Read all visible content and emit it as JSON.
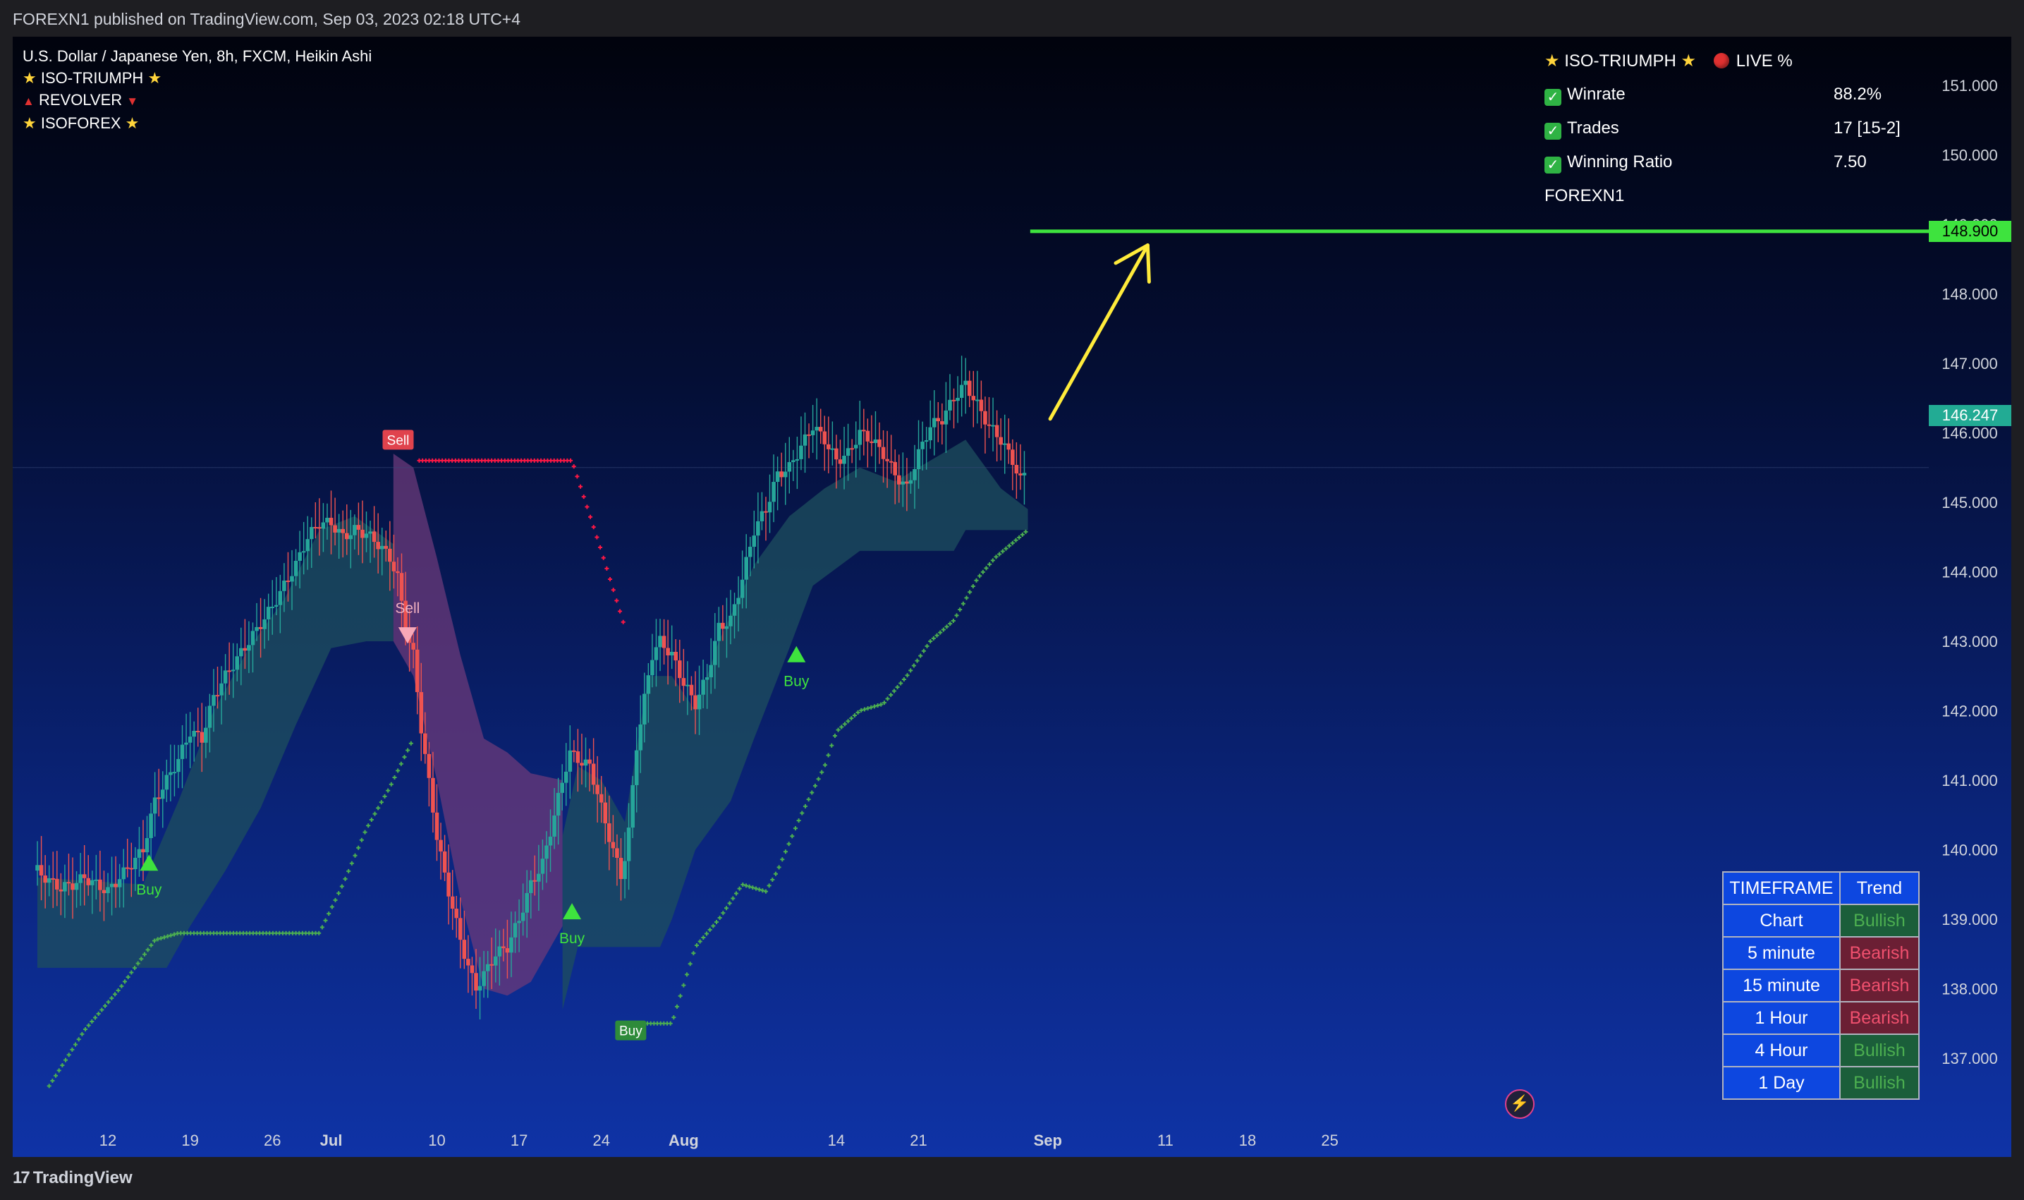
{
  "header": {
    "published": "FOREXN1 published on TradingView.com, Sep 03, 2023 02:18 UTC+4"
  },
  "legend": {
    "symbol": "U.S. Dollar / Japanese Yen, 8h, FXCM, Heikin Ashi",
    "indicators": [
      "ISO-TRIUMPH",
      "REVOLVER",
      "ISOFOREX"
    ]
  },
  "stats": {
    "title": "ISO-TRIUMPH",
    "live": "LIVE %",
    "rows": [
      {
        "label": "Winrate",
        "value": "88.2%"
      },
      {
        "label": "Trades",
        "value": "17 [15-2]"
      },
      {
        "label": "Winning Ratio",
        "value": "7.50"
      }
    ],
    "author": "FOREXN1"
  },
  "trend_table": {
    "headers": [
      "TIMEFRAME",
      "Trend"
    ],
    "rows": [
      {
        "timeframe": "Chart",
        "trend": "Bullish"
      },
      {
        "timeframe": "5 minute",
        "trend": "Bearish"
      },
      {
        "timeframe": "15 minute",
        "trend": "Bearish"
      },
      {
        "timeframe": "1 Hour",
        "trend": "Bearish"
      },
      {
        "timeframe": "4 Hour",
        "trend": "Bullish"
      },
      {
        "timeframe": "1 Day",
        "trend": "Bullish"
      }
    ]
  },
  "colors": {
    "bull": "#26a69a",
    "bear": "#ef5350",
    "target": "#3ee33e",
    "arrow": "#ffeb3b",
    "stop_dots_bull": "#4caf50",
    "stop_dots_bear": "#ff1744",
    "last_price_badge": "#22ab94",
    "cloud_bull": "#1d4f5e",
    "cloud_bear": "#6b3a7a"
  },
  "footer": {
    "brand": "TradingView"
  },
  "icons": {
    "bolt": "lightning-bolt-icon",
    "check": "check-box-icon",
    "live": "red-dot-icon"
  },
  "chart_data": {
    "type": "candlestick",
    "title": "U.S. Dollar / Japanese Yen, 8h, FXCM, Heikin Ashi",
    "y_range": [
      136.4,
      152.0
    ],
    "y_ticks": [
      "151.000",
      "150.000",
      "149.000",
      "148.000",
      "147.000",
      "146.000",
      "145.000",
      "144.000",
      "143.000",
      "142.000",
      "141.000",
      "140.000",
      "139.000",
      "138.000",
      "137.000"
    ],
    "y_tick_values": [
      151,
      150,
      149,
      148,
      147,
      146,
      145,
      144,
      143,
      142,
      141,
      140,
      139,
      138,
      137
    ],
    "x_labels": [
      {
        "label": "12",
        "day": 0
      },
      {
        "label": "19",
        "day": 7
      },
      {
        "label": "26",
        "day": 14
      },
      {
        "label": "Jul",
        "day": 19,
        "bold": true
      },
      {
        "label": "10",
        "day": 28
      },
      {
        "label": "17",
        "day": 35
      },
      {
        "label": "24",
        "day": 42
      },
      {
        "label": "Aug",
        "day": 49,
        "bold": true
      },
      {
        "label": "14",
        "day": 62
      },
      {
        "label": "21",
        "day": 69
      },
      {
        "label": "Sep",
        "day": 80,
        "bold": true
      },
      {
        "label": "11",
        "day": 90
      },
      {
        "label": "18",
        "day": 97
      },
      {
        "label": "25",
        "day": 104
      }
    ],
    "last_price": "146.247",
    "last_price_value": 146.247,
    "target_price": "148.900",
    "target_price_value": 148.9,
    "price_path": [
      [
        -6,
        139.7
      ],
      [
        -5,
        139.55
      ],
      [
        -4,
        139.45
      ],
      [
        -3,
        139.5
      ],
      [
        -2,
        139.6
      ],
      [
        0,
        139.4
      ],
      [
        1,
        139.6
      ],
      [
        3,
        140.0
      ],
      [
        4,
        140.7
      ],
      [
        6,
        141.3
      ],
      [
        7,
        141.7
      ],
      [
        8,
        141.6
      ],
      [
        9,
        142.2
      ],
      [
        10,
        142.5
      ],
      [
        12,
        143.0
      ],
      [
        14,
        143.5
      ],
      [
        16,
        144.1
      ],
      [
        17,
        144.5
      ],
      [
        18,
        144.7
      ],
      [
        19,
        144.7
      ],
      [
        20,
        144.5
      ],
      [
        21,
        144.6
      ],
      [
        22,
        144.55
      ],
      [
        23,
        144.4
      ],
      [
        24,
        144.2
      ],
      [
        24.7,
        143.9
      ],
      [
        25.3,
        143.2
      ],
      [
        26,
        142.8
      ],
      [
        26.7,
        141.7
      ],
      [
        27.3,
        141.0
      ],
      [
        28,
        140.2
      ],
      [
        28.7,
        139.6
      ],
      [
        29.3,
        139.2
      ],
      [
        30,
        138.7
      ],
      [
        30.7,
        138.3
      ],
      [
        31.3,
        138.0
      ],
      [
        32,
        138.2
      ],
      [
        33,
        138.5
      ],
      [
        34,
        138.6
      ],
      [
        35,
        139.0
      ],
      [
        36,
        139.5
      ],
      [
        37,
        139.8
      ],
      [
        38,
        140.5
      ],
      [
        38.7,
        141.0
      ],
      [
        39.3,
        141.4
      ],
      [
        40,
        141.3
      ],
      [
        41,
        141.2
      ],
      [
        41.7,
        140.8
      ],
      [
        42.3,
        140.4
      ],
      [
        43,
        140.0
      ],
      [
        43.7,
        139.6
      ],
      [
        44.3,
        140.2
      ],
      [
        45,
        141.5
      ],
      [
        45.7,
        142.2
      ],
      [
        46.3,
        142.8
      ],
      [
        47,
        143.0
      ],
      [
        48,
        142.8
      ],
      [
        49,
        142.4
      ],
      [
        50,
        142.1
      ],
      [
        51,
        142.5
      ],
      [
        52,
        143.2
      ],
      [
        53,
        143.3
      ],
      [
        54,
        143.9
      ],
      [
        55,
        144.6
      ],
      [
        56,
        144.9
      ],
      [
        57,
        145.4
      ],
      [
        58,
        145.5
      ],
      [
        59,
        145.8
      ],
      [
        60,
        146.1
      ],
      [
        61,
        145.9
      ],
      [
        62,
        145.6
      ],
      [
        63,
        145.7
      ],
      [
        64,
        146.0
      ],
      [
        65,
        145.9
      ],
      [
        66,
        145.7
      ],
      [
        67,
        145.4
      ],
      [
        68,
        145.2
      ],
      [
        69,
        145.7
      ],
      [
        70,
        146.1
      ],
      [
        71,
        146.2
      ],
      [
        72,
        146.5
      ],
      [
        73,
        146.7
      ],
      [
        74,
        146.4
      ],
      [
        75,
        146.1
      ],
      [
        76,
        145.9
      ],
      [
        77,
        145.6
      ],
      [
        77.7,
        145.3
      ],
      [
        78.3,
        145.5
      ]
    ],
    "cloud_bull_1": [
      [
        -6,
        138.3
      ],
      [
        5,
        138.3
      ],
      [
        7,
        138.9
      ],
      [
        10,
        139.7
      ],
      [
        13,
        140.6
      ],
      [
        16,
        141.8
      ],
      [
        19,
        142.9
      ],
      [
        22,
        143.0
      ],
      [
        24.3,
        143.0
      ]
    ],
    "cloud_bull_1_top": [
      [
        -6,
        139.6
      ],
      [
        3,
        139.5
      ],
      [
        6,
        140.7
      ],
      [
        9,
        142.0
      ],
      [
        12,
        142.9
      ],
      [
        15,
        143.6
      ],
      [
        18,
        144.6
      ],
      [
        21,
        144.8
      ],
      [
        24.3,
        144.4
      ]
    ],
    "cloud_bear": [
      [
        24.3,
        145.7
      ],
      [
        26,
        145.5
      ],
      [
        28,
        144.2
      ],
      [
        30,
        142.8
      ],
      [
        32,
        141.6
      ],
      [
        34,
        141.4
      ],
      [
        36,
        141.1
      ],
      [
        38.7,
        141.0
      ]
    ],
    "cloud_bear_bottom": [
      [
        24.3,
        143.0
      ],
      [
        26,
        142.5
      ],
      [
        28,
        141.0
      ],
      [
        30,
        139.3
      ],
      [
        32,
        138.0
      ],
      [
        34,
        137.9
      ],
      [
        36,
        138.1
      ],
      [
        38.7,
        138.9
      ]
    ],
    "cloud_bull_2": [
      [
        38.7,
        140.2
      ],
      [
        40,
        141.2
      ],
      [
        42,
        141.0
      ],
      [
        44,
        140.4
      ],
      [
        46,
        142.5
      ],
      [
        48,
        142.5
      ],
      [
        50,
        142.0
      ],
      [
        52,
        143.0
      ],
      [
        55,
        144.1
      ],
      [
        58,
        144.8
      ],
      [
        61,
        145.2
      ],
      [
        64,
        145.5
      ],
      [
        67,
        145.3
      ],
      [
        70,
        145.6
      ],
      [
        73,
        145.9
      ],
      [
        76,
        145.2
      ],
      [
        78.3,
        144.9
      ]
    ],
    "cloud_bull_2_bottom": [
      [
        38.7,
        137.7
      ],
      [
        40,
        138.6
      ],
      [
        44,
        138.6
      ],
      [
        47,
        138.6
      ],
      [
        48,
        139.0
      ],
      [
        50,
        140.0
      ],
      [
        53,
        140.7
      ],
      [
        55,
        141.6
      ],
      [
        58,
        142.9
      ],
      [
        60,
        143.8
      ],
      [
        64,
        144.3
      ],
      [
        69,
        144.3
      ],
      [
        72,
        144.3
      ],
      [
        73,
        144.6
      ],
      [
        78.3,
        144.6
      ]
    ],
    "stop_bull_1": [
      [
        -5,
        136.6
      ],
      [
        -2,
        137.4
      ],
      [
        1,
        138.0
      ],
      [
        4,
        138.7
      ],
      [
        6,
        138.8
      ],
      [
        18,
        138.8
      ],
      [
        20,
        139.5
      ],
      [
        22,
        140.3
      ],
      [
        24,
        140.9
      ],
      [
        26,
        141.6
      ]
    ],
    "stop_bear": [
      [
        26.5,
        145.6
      ],
      [
        39.5,
        145.6
      ],
      [
        42,
        144.3
      ],
      [
        44,
        143.2
      ]
    ],
    "stop_bull_2": [
      [
        44.8,
        137.5
      ],
      [
        48,
        137.5
      ],
      [
        50,
        138.6
      ],
      [
        52,
        139.0
      ],
      [
        54,
        139.5
      ],
      [
        56,
        139.4
      ],
      [
        57,
        139.7
      ],
      [
        59,
        140.5
      ],
      [
        61,
        141.2
      ],
      [
        62,
        141.7
      ],
      [
        64,
        142.0
      ],
      [
        66,
        142.1
      ],
      [
        68,
        142.5
      ],
      [
        70,
        143.0
      ],
      [
        72,
        143.3
      ],
      [
        74,
        143.9
      ],
      [
        75.5,
        144.2
      ],
      [
        78.3,
        144.6
      ]
    ],
    "signals": [
      {
        "type": "buy",
        "label": "Buy",
        "day": 3.5,
        "price": 139.8,
        "style": "triangle"
      },
      {
        "type": "sell",
        "label": "Sell",
        "day": 24.7,
        "price": 145.9,
        "style": "badge"
      },
      {
        "type": "sell",
        "label": "Sell",
        "day": 25.5,
        "price": 143.1,
        "style": "triangle"
      },
      {
        "type": "buy",
        "label": "Buy",
        "day": 39.5,
        "price": 139.1,
        "style": "triangle"
      },
      {
        "type": "buy",
        "label": "Buy",
        "day": 44.5,
        "price": 137.4,
        "style": "badge"
      },
      {
        "type": "buy",
        "label": "Buy",
        "day": 58.6,
        "price": 142.8,
        "style": "triangle"
      }
    ],
    "arrow": {
      "from": [
        80.2,
        146.2
      ],
      "to": [
        88.5,
        148.7
      ]
    },
    "target_line": {
      "from_day": 78.5,
      "to_day": 110
    }
  }
}
